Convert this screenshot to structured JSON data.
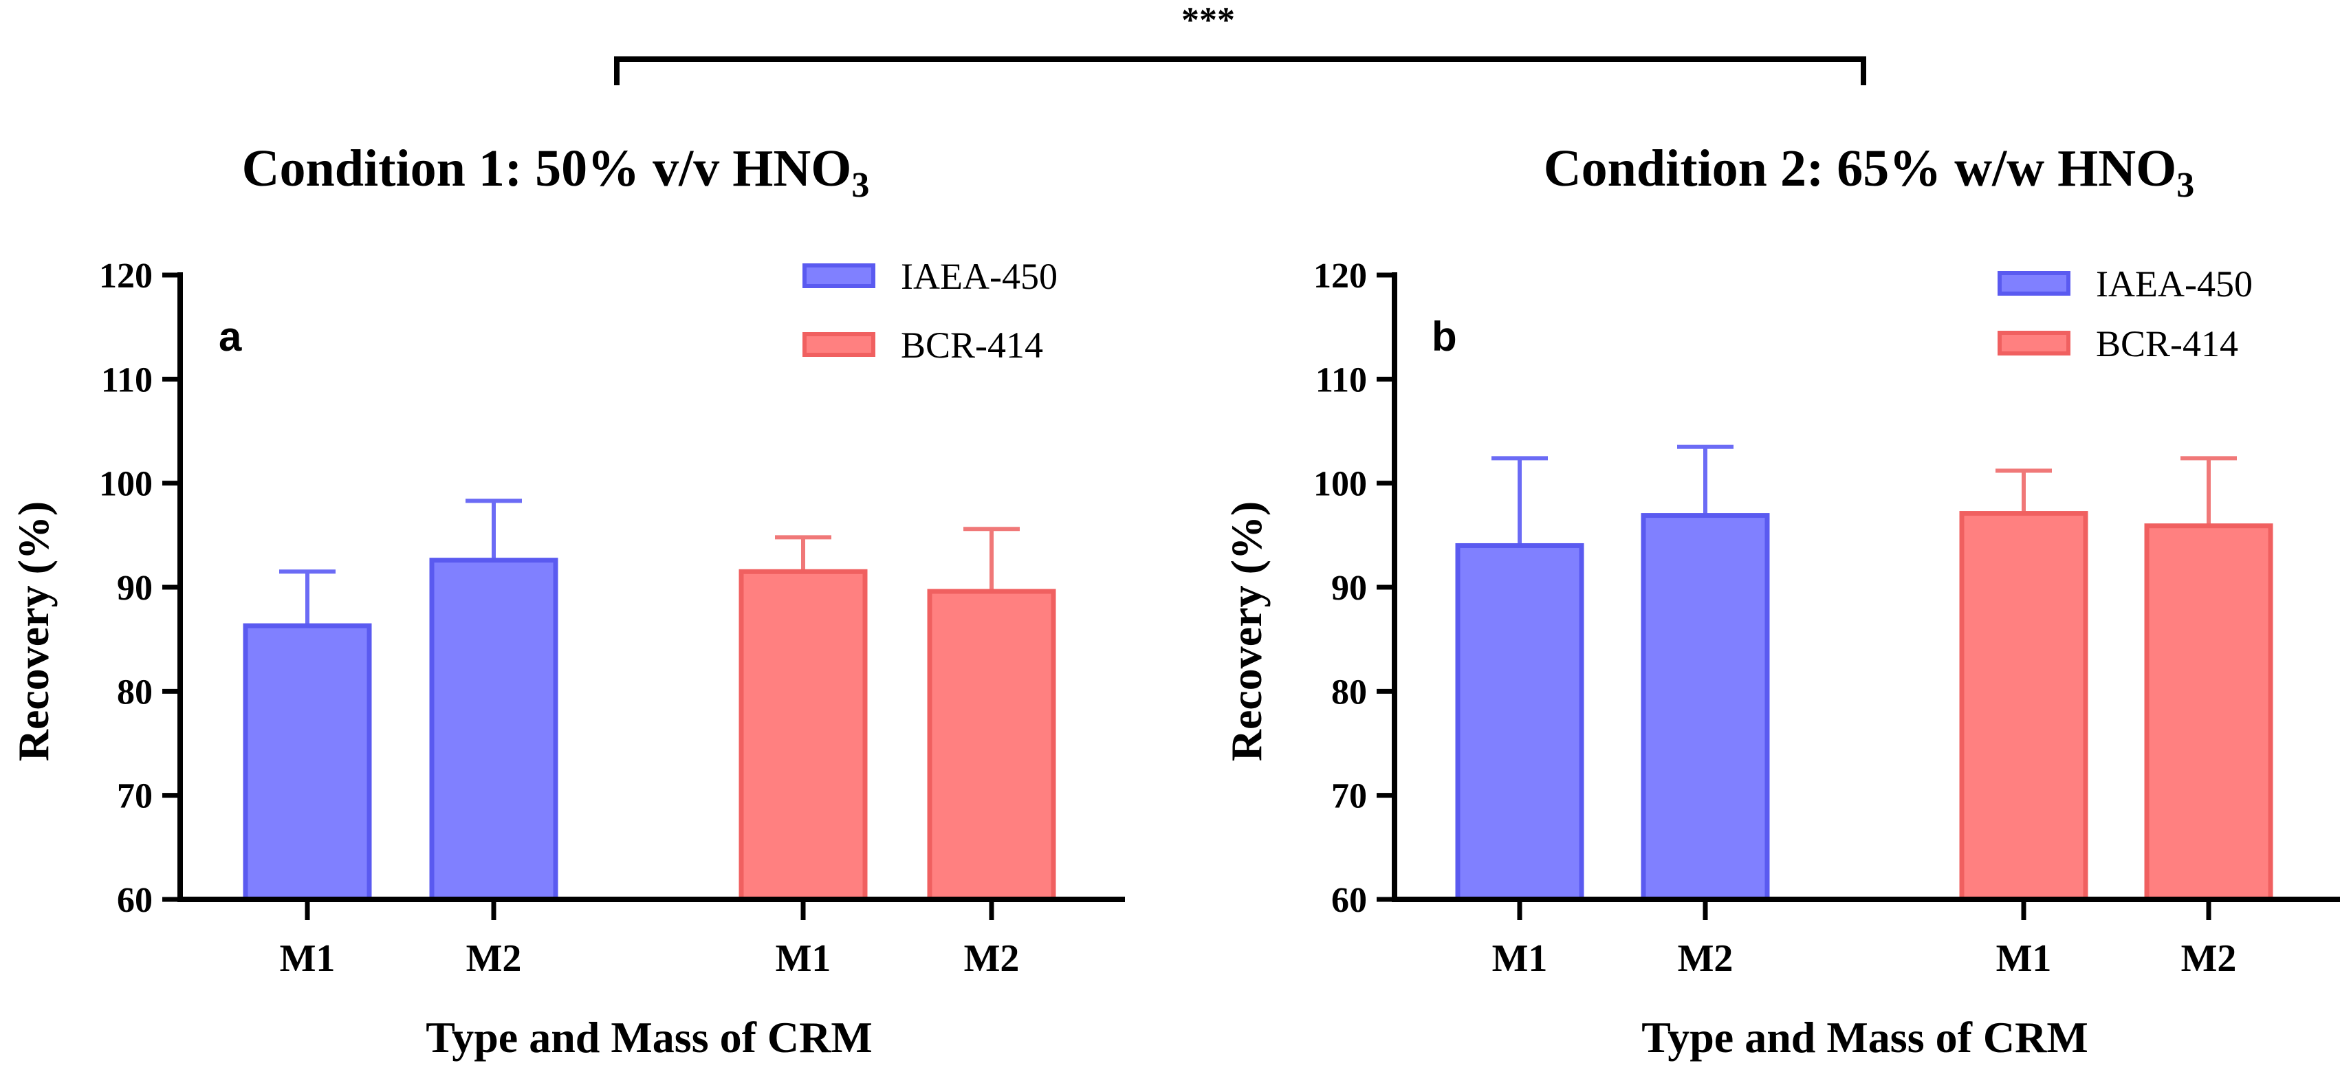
{
  "significance": {
    "label": "***",
    "color": "#000000"
  },
  "colors": {
    "IAEA-450_fill": "#8080FF",
    "IAEA-450_stroke": "#5A5AF0",
    "IAEA-450_error": "#6B6BF5",
    "BCR-414_fill": "#FF8080",
    "BCR-414_stroke": "#F06060",
    "BCR-414_error": "#F07878"
  },
  "chart_data": [
    {
      "type": "bar",
      "panel_label": "a",
      "title_main": "Condition 1: 50% v/v HNO",
      "title_sub": "3",
      "xlabel": "Type and Mass of CRM",
      "ylabel": "Recovery (%)",
      "ylim": [
        60,
        120
      ],
      "yticks": [
        60,
        70,
        80,
        90,
        100,
        110,
        120
      ],
      "categories": [
        "M1",
        "M2",
        "M1",
        "M2"
      ],
      "legend": [
        "IAEA-450",
        "BCR-414"
      ],
      "legend_position": "top-right",
      "bars": [
        {
          "series": "IAEA-450",
          "category": "M1",
          "value": 86.3,
          "error": 5.2
        },
        {
          "series": "IAEA-450",
          "category": "M2",
          "value": 92.6,
          "error": 5.7
        },
        {
          "series": "BCR-414",
          "category": "M1",
          "value": 91.5,
          "error": 3.3
        },
        {
          "series": "BCR-414",
          "category": "M2",
          "value": 89.6,
          "error": 6.0
        }
      ]
    },
    {
      "type": "bar",
      "panel_label": "b",
      "title_main": "Condition 2: 65% w/w HNO",
      "title_sub": "3",
      "xlabel": "Type and Mass of CRM",
      "ylabel": "Recovery (%)",
      "ylim": [
        60,
        120
      ],
      "yticks": [
        60,
        70,
        80,
        90,
        100,
        110,
        120
      ],
      "categories": [
        "M1",
        "M2",
        "M1",
        "M2"
      ],
      "legend": [
        "IAEA-450",
        "BCR-414"
      ],
      "legend_position": "top-right",
      "bars": [
        {
          "series": "IAEA-450",
          "category": "M1",
          "value": 94.0,
          "error": 8.4
        },
        {
          "series": "IAEA-450",
          "category": "M2",
          "value": 96.9,
          "error": 6.6
        },
        {
          "series": "BCR-414",
          "category": "M1",
          "value": 97.1,
          "error": 4.1
        },
        {
          "series": "BCR-414",
          "category": "M2",
          "value": 95.9,
          "error": 6.5
        }
      ]
    }
  ]
}
